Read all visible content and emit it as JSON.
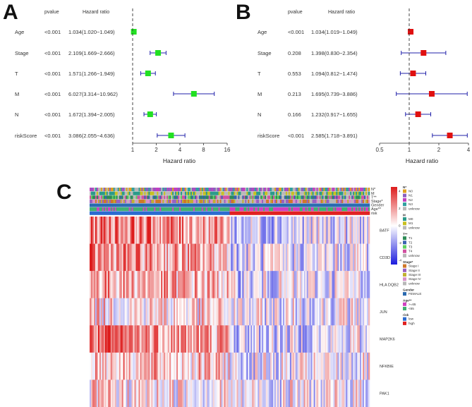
{
  "chart_data": [
    {
      "panel": "A",
      "type": "forest",
      "columns": [
        "pvalue",
        "Hazard ratio"
      ],
      "xlabel": "Hazard ratio",
      "scale": "log2",
      "xlim": [
        1,
        16
      ],
      "ticks": [
        "1",
        "2",
        "4",
        "8",
        "16"
      ],
      "reference_line": 1,
      "marker_color": "#22e022",
      "ci_color": "#2222aa",
      "rows": [
        {
          "label": "Age",
          "pvalue": "<0.001",
          "hr_text": "1.034(1.020−1.049)",
          "hr": 1.034,
          "low": 1.02,
          "high": 1.049
        },
        {
          "label": "Stage",
          "pvalue": "<0.001",
          "hr_text": "2.109(1.669−2.666)",
          "hr": 2.109,
          "low": 1.669,
          "high": 2.666
        },
        {
          "label": "T",
          "pvalue": "<0.001",
          "hr_text": "1.571(1.266−1.949)",
          "hr": 1.571,
          "low": 1.266,
          "high": 1.949
        },
        {
          "label": "M",
          "pvalue": "<0.001",
          "hr_text": "6.027(3.314−10.962)",
          "hr": 6.027,
          "low": 3.314,
          "high": 10.962
        },
        {
          "label": "N",
          "pvalue": "<0.001",
          "hr_text": "1.672(1.394−2.005)",
          "hr": 1.672,
          "low": 1.394,
          "high": 2.005
        },
        {
          "label": "riskScore",
          "pvalue": "<0.001",
          "hr_text": "3.086(2.055−4.636)",
          "hr": 3.086,
          "low": 2.055,
          "high": 4.636
        }
      ]
    },
    {
      "panel": "B",
      "type": "forest",
      "columns": [
        "pvalue",
        "Hazard ratio"
      ],
      "xlabel": "Hazard ratio",
      "scale": "log2",
      "xlim": [
        0.5,
        4
      ],
      "ticks": [
        "0.5",
        "1",
        "2",
        "4"
      ],
      "reference_line": 1,
      "marker_color": "#e01010",
      "ci_color": "#2222aa",
      "rows": [
        {
          "label": "Age",
          "pvalue": "<0.001",
          "hr_text": "1.034(1.019−1.049)",
          "hr": 1.034,
          "low": 1.019,
          "high": 1.049
        },
        {
          "label": "Stage",
          "pvalue": "0.208",
          "hr_text": "1.398(0.830−2.354)",
          "hr": 1.398,
          "low": 0.83,
          "high": 2.354
        },
        {
          "label": "T",
          "pvalue": "0.553",
          "hr_text": "1.094(0.812−1.474)",
          "hr": 1.094,
          "low": 0.812,
          "high": 1.474
        },
        {
          "label": "M",
          "pvalue": "0.213",
          "hr_text": "1.695(0.739−3.886)",
          "hr": 1.695,
          "low": 0.739,
          "high": 3.886
        },
        {
          "label": "N",
          "pvalue": "0.166",
          "hr_text": "1.232(0.917−1.655)",
          "hr": 1.232,
          "low": 0.917,
          "high": 1.655
        },
        {
          "label": "riskScore",
          "pvalue": "<0.001",
          "hr_text": "2.585(1.718−3.891)",
          "hr": 2.585,
          "low": 1.718,
          "high": 3.891
        }
      ]
    },
    {
      "panel": "C",
      "type": "heatmap",
      "genes": [
        "BATF",
        "CD3D",
        "HLA DQB2",
        "JUN",
        "MAP2K6",
        "NFKBIE",
        "PAK1"
      ],
      "value_range": [
        -4,
        4
      ],
      "colorbar_ticks": [
        "4",
        "2",
        "0",
        "-2",
        "-4"
      ],
      "colorbar_colors": [
        "#dd1c1c",
        "#ffffff",
        "#1c1cdd"
      ],
      "samples": 200,
      "risk_split": {
        "low": 100,
        "high": 100
      },
      "annotation_tracks": [
        "N*",
        "M",
        "T**",
        "Stage*",
        "Gender",
        "Age**",
        "risk"
      ],
      "legends": [
        {
          "title": "N*",
          "items": [
            {
              "label": "N0",
              "color": "#e0a020"
            },
            {
              "label": "N1",
              "color": "#8a5fc0"
            },
            {
              "label": "N2",
              "color": "#c040c0"
            },
            {
              "label": "N3",
              "color": "#30a0a0"
            },
            {
              "label": "unknow",
              "color": "#b8b8b8"
            }
          ]
        },
        {
          "title": "M",
          "items": [
            {
              "label": "M0",
              "color": "#2a9a8a"
            },
            {
              "label": "M1",
              "color": "#c8c020"
            },
            {
              "label": "unknow",
              "color": "#b8b8b8"
            }
          ]
        },
        {
          "title": "T**",
          "items": [
            {
              "label": "T1",
              "color": "#2e8b57"
            },
            {
              "label": "T2",
              "color": "#3a62b0"
            },
            {
              "label": "T3",
              "color": "#5fcf5f"
            },
            {
              "label": "T4",
              "color": "#d050a0"
            },
            {
              "label": "unknow",
              "color": "#b8b8b8"
            }
          ]
        },
        {
          "title": "Stage*",
          "items": [
            {
              "label": "Stage I",
              "color": "#d07828"
            },
            {
              "label": "Stage II",
              "color": "#9a60c0"
            },
            {
              "label": "Stage III",
              "color": "#c0b030"
            },
            {
              "label": "Stage IV",
              "color": "#d890c8"
            },
            {
              "label": "unknow",
              "color": "#b8b8b8"
            }
          ]
        },
        {
          "title": "Gender",
          "items": [
            {
              "label": "FEMALE",
              "color": "#2a6ab0"
            }
          ]
        },
        {
          "title": "Age**",
          "items": [
            {
              "label": ">=65",
              "color": "#d040c0"
            },
            {
              "label": "<65",
              "color": "#40b070"
            }
          ]
        },
        {
          "title": "risk",
          "items": [
            {
              "label": "low",
              "color": "#2a6ad0"
            },
            {
              "label": "high",
              "color": "#e02020"
            }
          ]
        }
      ]
    }
  ]
}
